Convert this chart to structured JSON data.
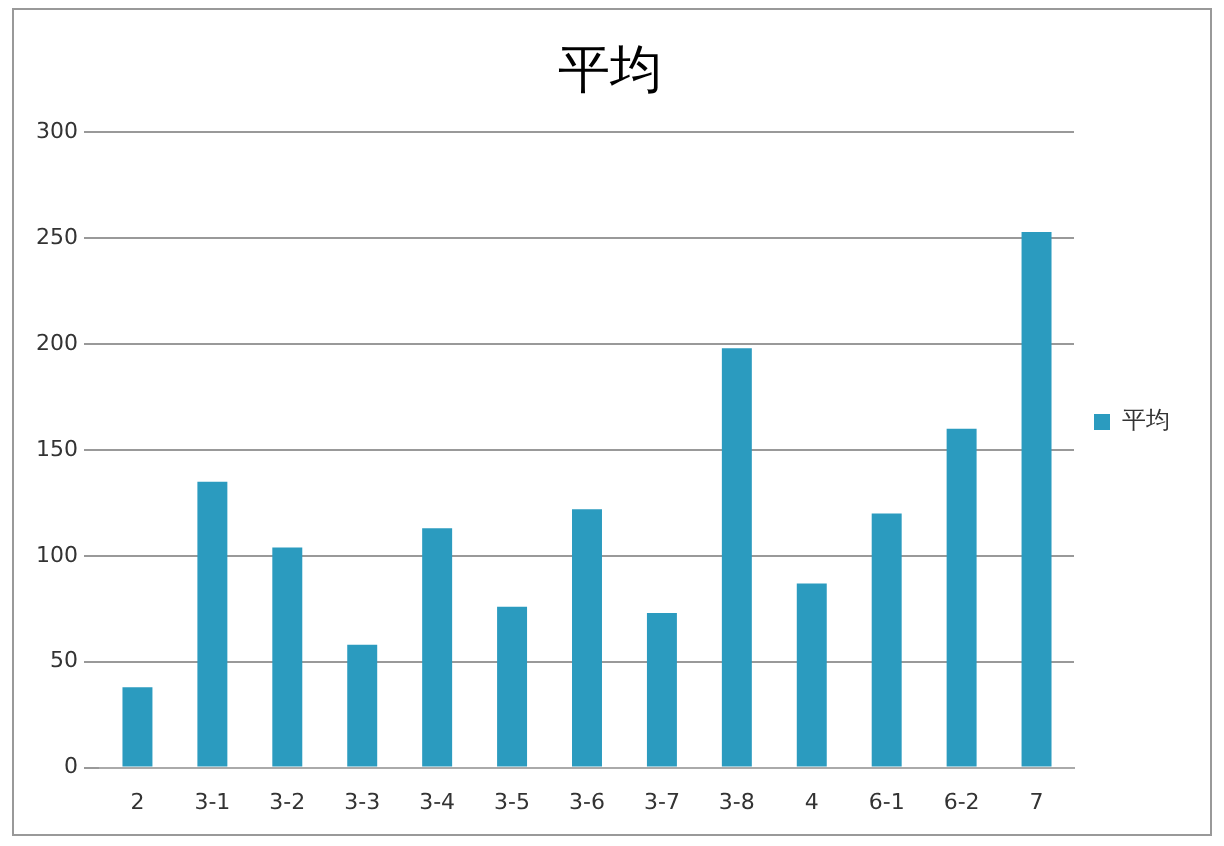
{
  "chart_data": {
    "type": "bar",
    "title": "平均",
    "categories": [
      "2",
      "3-1",
      "3-2",
      "3-3",
      "3-4",
      "3-5",
      "3-6",
      "3-7",
      "3-8",
      "4",
      "6-1",
      "6-2",
      "7"
    ],
    "series": [
      {
        "name": "平均",
        "color": "#2b9bbf",
        "values": [
          38,
          135,
          104,
          58,
          113,
          76,
          122,
          73,
          198,
          87,
          120,
          160,
          253
        ]
      }
    ],
    "ylim": [
      0,
      300
    ],
    "yticks": [
      0,
      50,
      100,
      150,
      200,
      250,
      300
    ],
    "grid": "y",
    "legend": "right"
  }
}
